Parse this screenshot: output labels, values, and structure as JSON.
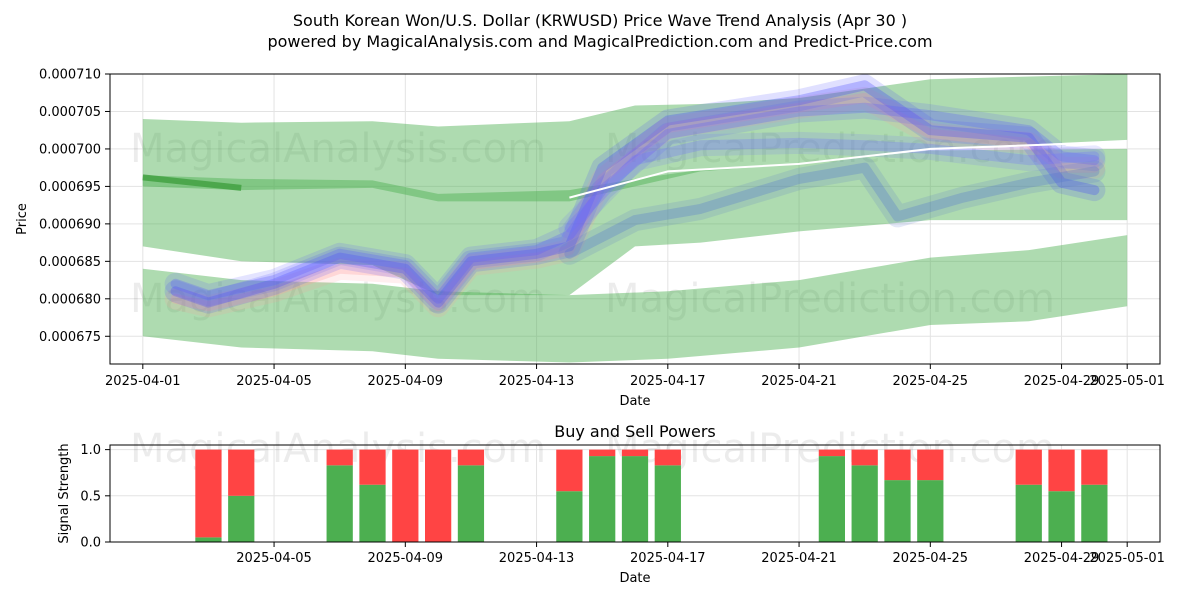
{
  "title_line1": "South Korean Won/U.S. Dollar (KRWUSD) Price Wave Trend Analysis (Apr 30 )",
  "title_line2": "powered by MagicalAnalysis.com and MagicalPrediction.com and Predict-Price.com",
  "watermarks": [
    "MagicalAnalysis.com",
    "MagicalPrediction.com"
  ],
  "colors": {
    "green_band": "#4caf50",
    "blue_wave": "#3f3fff",
    "pink_wave": "#ff9999",
    "buy": "#4caf50",
    "sell": "#ff4444"
  },
  "chart_data": [
    {
      "type": "area",
      "title": "",
      "xlabel": "Date",
      "ylabel": "Price",
      "x_ticks": [
        "2025-04-01",
        "2025-04-05",
        "2025-04-09",
        "2025-04-13",
        "2025-04-17",
        "2025-04-21",
        "2025-04-25",
        "2025-04-29",
        "2025-05-01"
      ],
      "y_ticks": [
        "0.000675",
        "0.000680",
        "0.000685",
        "0.000690",
        "0.000695",
        "0.000700",
        "0.000705",
        "0.000710"
      ],
      "xlim": [
        "2025-03-31",
        "2025-05-02"
      ],
      "ylim": [
        0.0006713,
        0.00071
      ],
      "grid": true,
      "bands": [
        {
          "name": "upper",
          "x": [
            "2025-04-01",
            "2025-04-04",
            "2025-04-08",
            "2025-04-10",
            "2025-04-14",
            "2025-04-16",
            "2025-04-18",
            "2025-04-21",
            "2025-04-25",
            "2025-05-01"
          ],
          "upper": [
            0.000704,
            0.0007035,
            0.0007037,
            0.000703,
            0.0007037,
            0.0007058,
            0.000706,
            0.0007068,
            0.0007093,
            0.00071
          ],
          "lower": [
            0.000695,
            0.0006945,
            0.0006948,
            0.000693,
            0.000693,
            0.000695,
            0.000697,
            0.000698,
            0.0007,
            0.0007012
          ]
        },
        {
          "name": "middle",
          "x": [
            "2025-04-01",
            "2025-04-04",
            "2025-04-08",
            "2025-04-10",
            "2025-04-14",
            "2025-04-16",
            "2025-04-18",
            "2025-04-21",
            "2025-04-25",
            "2025-05-01"
          ],
          "upper": [
            0.0006965,
            0.000696,
            0.0006958,
            0.000694,
            0.0006945,
            0.000696,
            0.0006972,
            0.000698,
            0.0006998,
            0.0007
          ],
          "lower": [
            0.000687,
            0.000685,
            0.0006845,
            0.0006805,
            0.0006805,
            0.000687,
            0.0006875,
            0.000689,
            0.0006905,
            0.0006905
          ]
        },
        {
          "name": "lower",
          "x": [
            "2025-04-01",
            "2025-04-04",
            "2025-04-08",
            "2025-04-10",
            "2025-04-14",
            "2025-04-17",
            "2025-04-21",
            "2025-04-25",
            "2025-04-28",
            "2025-05-01"
          ],
          "upper": [
            0.000684,
            0.0006825,
            0.000682,
            0.000681,
            0.0006805,
            0.000681,
            0.0006825,
            0.0006855,
            0.0006865,
            0.0006885
          ],
          "lower": [
            0.000675,
            0.0006735,
            0.000673,
            0.000672,
            0.0006715,
            0.000672,
            0.0006735,
            0.0006765,
            0.000677,
            0.000679
          ]
        }
      ],
      "series": [
        {
          "x": [
            "2025-04-02",
            "2025-04-03",
            "2025-04-05",
            "2025-04-07",
            "2025-04-09",
            "2025-04-10",
            "2025-04-11",
            "2025-04-13",
            "2025-04-14",
            "2025-04-15",
            "2025-04-17",
            "2025-04-21",
            "2025-04-23",
            "2025-04-25",
            "2025-04-28",
            "2025-04-29",
            "2025-04-30"
          ],
          "y": [
            0.00068,
            0.000679,
            0.000681,
            0.000684,
            0.0006835,
            0.000679,
            0.0006845,
            0.0006855,
            0.0006865,
            0.000696,
            0.0007028,
            0.0007055,
            0.0007068,
            0.000702,
            0.0007008,
            0.0006975,
            0.0006975
          ]
        },
        {
          "x": [
            "2025-04-02",
            "2025-04-03",
            "2025-04-05",
            "2025-04-07",
            "2025-04-09",
            "2025-04-10",
            "2025-04-11",
            "2025-04-13",
            "2025-04-14",
            "2025-04-15",
            "2025-04-17",
            "2025-04-21",
            "2025-04-23",
            "2025-04-25",
            "2025-04-28",
            "2025-04-29",
            "2025-04-30"
          ],
          "y": [
            0.000681,
            0.0006795,
            0.000682,
            0.0006855,
            0.000684,
            0.0006795,
            0.000685,
            0.000686,
            0.000687,
            0.0006975,
            0.0007038,
            0.0007065,
            0.0007085,
            0.0007025,
            0.0007015,
            0.0006955,
            0.0006945
          ]
        },
        {
          "x": [
            "2025-04-02",
            "2025-04-03",
            "2025-04-05",
            "2025-04-07",
            "2025-04-09",
            "2025-04-10",
            "2025-04-11",
            "2025-04-13",
            "2025-04-14",
            "2025-04-15",
            "2025-04-17",
            "2025-04-21",
            "2025-04-23",
            "2025-04-25",
            "2025-04-28",
            "2025-04-29",
            "2025-04-30"
          ],
          "y": [
            0.000682,
            0.0006805,
            0.0006825,
            0.000686,
            0.0006845,
            0.00068,
            0.0006855,
            0.0006865,
            0.0006885,
            0.0006945,
            0.000702,
            0.000705,
            0.0007055,
            0.0007045,
            0.0007025,
            0.000699,
            0.0006985
          ]
        },
        {
          "x": [
            "2025-04-14",
            "2025-04-16",
            "2025-04-18",
            "2025-04-21",
            "2025-04-23",
            "2025-04-24",
            "2025-04-26",
            "2025-04-28",
            "2025-04-30"
          ],
          "y": [
            0.000686,
            0.0006905,
            0.000692,
            0.000696,
            0.0006975,
            0.000691,
            0.0006935,
            0.0006955,
            0.000697
          ]
        },
        {
          "x": [
            "2025-04-14",
            "2025-04-16",
            "2025-04-18",
            "2025-04-21",
            "2025-04-23",
            "2025-04-25",
            "2025-04-28",
            "2025-04-30"
          ],
          "y": [
            0.0006895,
            0.0006985,
            0.0007005,
            0.0007008,
            0.0007005,
            0.0007,
            0.0006985,
            0.000699
          ]
        }
      ],
      "trend_line": {
        "x": [
          "2025-04-14",
          "2025-04-17",
          "2025-04-21",
          "2025-04-25",
          "2025-04-30"
        ],
        "y": [
          0.0006935,
          0.000697,
          0.000698,
          0.0007,
          0.0007008
        ]
      }
    },
    {
      "type": "bar",
      "title": "Buy and Sell Powers",
      "xlabel": "Date",
      "ylabel": "Signal Strength",
      "x_ticks": [
        "2025-04-05",
        "2025-04-09",
        "2025-04-13",
        "2025-04-17",
        "2025-04-21",
        "2025-04-25",
        "2025-04-29",
        "2025-05-01"
      ],
      "y_ticks": [
        "0.0",
        "0.5",
        "1.0"
      ],
      "xlim": [
        "2025-03-31",
        "2025-05-02"
      ],
      "ylim": [
        0,
        1.05
      ],
      "bars": [
        {
          "date": "2025-04-03",
          "buy": 0.05,
          "sell": 0.95
        },
        {
          "date": "2025-04-04",
          "buy": 0.5,
          "sell": 0.5
        },
        {
          "date": "2025-04-07",
          "buy": 0.83,
          "sell": 0.17
        },
        {
          "date": "2025-04-08",
          "buy": 0.62,
          "sell": 0.38
        },
        {
          "date": "2025-04-09",
          "buy": 0.0,
          "sell": 1.0
        },
        {
          "date": "2025-04-10",
          "buy": 0.0,
          "sell": 1.0
        },
        {
          "date": "2025-04-11",
          "buy": 0.83,
          "sell": 0.17
        },
        {
          "date": "2025-04-14",
          "buy": 0.55,
          "sell": 0.45
        },
        {
          "date": "2025-04-15",
          "buy": 0.93,
          "sell": 0.07
        },
        {
          "date": "2025-04-16",
          "buy": 0.93,
          "sell": 0.07
        },
        {
          "date": "2025-04-17",
          "buy": 0.83,
          "sell": 0.17
        },
        {
          "date": "2025-04-22",
          "buy": 0.93,
          "sell": 0.07
        },
        {
          "date": "2025-04-23",
          "buy": 0.83,
          "sell": 0.17
        },
        {
          "date": "2025-04-24",
          "buy": 0.67,
          "sell": 0.33
        },
        {
          "date": "2025-04-25",
          "buy": 0.67,
          "sell": 0.33
        },
        {
          "date": "2025-04-28",
          "buy": 0.62,
          "sell": 0.38
        },
        {
          "date": "2025-04-29",
          "buy": 0.55,
          "sell": 0.45
        },
        {
          "date": "2025-04-30",
          "buy": 0.62,
          "sell": 0.38
        }
      ]
    }
  ]
}
